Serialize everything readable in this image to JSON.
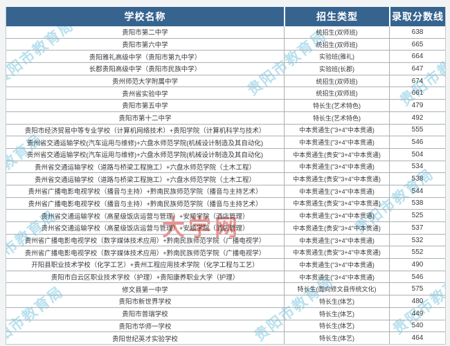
{
  "table": {
    "columns": [
      "学校名称",
      "招生类型",
      "录取分数线"
    ],
    "rows": [
      {
        "school": "贵阳市第二中学",
        "type": "统招生(双师班)",
        "score": "638"
      },
      {
        "school": "贵阳市第六中学",
        "type": "统招生(双师班)",
        "score": "665"
      },
      {
        "school": "贵阳雅礼高级中学（贵阳市第九中学）",
        "type": "实验班(雅礼)",
        "score": "664"
      },
      {
        "school": "长郡贵阳高级中学（贵阳市民族中学）",
        "type": "实验班(长郡)",
        "score": "647"
      },
      {
        "school": "贵州师范大学附属中学",
        "type": "统招生(双师班)",
        "score": "674"
      },
      {
        "school": "贵州省实验中学",
        "type": "统招生(双师班)",
        "score": "661"
      },
      {
        "school": "贵阳市第五中学",
        "type": "特长生(艺术特色)",
        "score": "479"
      },
      {
        "school": "贵阳市第十二中学",
        "type": "特长生(艺术特色)",
        "score": "492"
      },
      {
        "school": "贵阳市经济贸易中等专业学校（计算机网络技术）+贵阳学院（计算机科学与技术）",
        "type": "中本贯通生(\"3+4\"中本贯通)",
        "score": "555"
      },
      {
        "school": "贵州省交通运输学校(汽车运用与维修)+六盘水师范学院(机械设计制造及其自动化)",
        "type": "中本贯通生(\"3+4\"中本贯通)",
        "score": "546"
      },
      {
        "school": "贵州省交通运输学校(汽车运用与维修)+六盘水师范学院(机械设计制造及其自动化)",
        "type": "中本贯通生(贵安\"3+4\"中本贯通)",
        "score": "504"
      },
      {
        "school": "贵州省交通运输学校（道路与桥梁工程施工）+六盘水师范学院（土木工程）",
        "type": "中本贯通生(\"3+4\"中本贯通)",
        "score": "534"
      },
      {
        "school": "贵州省交通运输学校（道路与桥梁工程施工）+六盘水师范学院（土木工程）",
        "type": "中本贯通生(贵安\"3+4\"中本贯通)",
        "score": "538"
      },
      {
        "school": "贵州省广播电影电视学校（播音与主持）+黔南民族师范学院（播音与主持艺术）",
        "type": "中本贯通生(\"3+4\"中本贯通)",
        "score": "544"
      },
      {
        "school": "贵州省广播电影电视学校（播音与主持）+黔南民族师范学院（播音与主持艺术）",
        "type": "中本贯通生(贵安\"3+4\"中本贯通)",
        "score": "538"
      },
      {
        "school": "贵州省交通运输学校（高星级饭店运营与管理）+安顺学院（酒店管理）",
        "type": "中本贯通生(\"3+4\"中本贯通)",
        "score": "525"
      },
      {
        "school": "贵州省交通运输学校（高星级饭店运营与管理）+安顺学院（酒店管理）",
        "type": "中本贯通生(贵安\"3+4\"中本贯通)",
        "score": "537"
      },
      {
        "school": "贵州省广播电影电视学校（数字媒体技术应用）+黔南民族师范学院（广播电视学）",
        "type": "中本贯通生(\"3+4\"中本贯通)",
        "score": "532"
      },
      {
        "school": "贵州省广播电影电视学校（数字媒体技术应用）+黔南民族师范学院（广播电视学）",
        "type": "中本贯通生(贵安\"3+4\"中本贯通)",
        "score": "552"
      },
      {
        "school": "开阳县职业技术学校（化学工艺）+贵州工程应用技术学院（化学工程与工艺）",
        "type": "中本贯通生(\"3+4\"中本贯通)",
        "score": "490"
      },
      {
        "school": "贵阳市白云区职业技术学校（护理）+贵阳康养职业大学（护理）",
        "type": "中本贯通生(\"3+4\"中本贯通)",
        "score": "546"
      },
      {
        "school": "修文县第一中学",
        "type": "特长生(面向修文县传统文化)",
        "score": "575"
      },
      {
        "school": "贵阳市新世界学校",
        "type": "特长生(体艺)",
        "score": "480"
      },
      {
        "school": "贵阳市普瑞学校",
        "type": "特长生(体艺)",
        "score": "449"
      },
      {
        "school": "贵阳市华师一学校",
        "type": "特长生(体艺)",
        "score": "540"
      },
      {
        "school": "贵阳世纪英才实验学校",
        "type": "特长生(体艺)",
        "score": "464"
      }
    ]
  },
  "watermarks": {
    "diagonal_text": "贵阳市教育局",
    "diagonal_color": "#7dc8e2",
    "red_text": "大学网",
    "red_color": "#df3930"
  },
  "colors": {
    "header_bg": "#36648f",
    "header_text": "#ffffff",
    "row_line": "#abafb2",
    "body_text": "#38393d",
    "page_bg": "#f1f3f4"
  }
}
